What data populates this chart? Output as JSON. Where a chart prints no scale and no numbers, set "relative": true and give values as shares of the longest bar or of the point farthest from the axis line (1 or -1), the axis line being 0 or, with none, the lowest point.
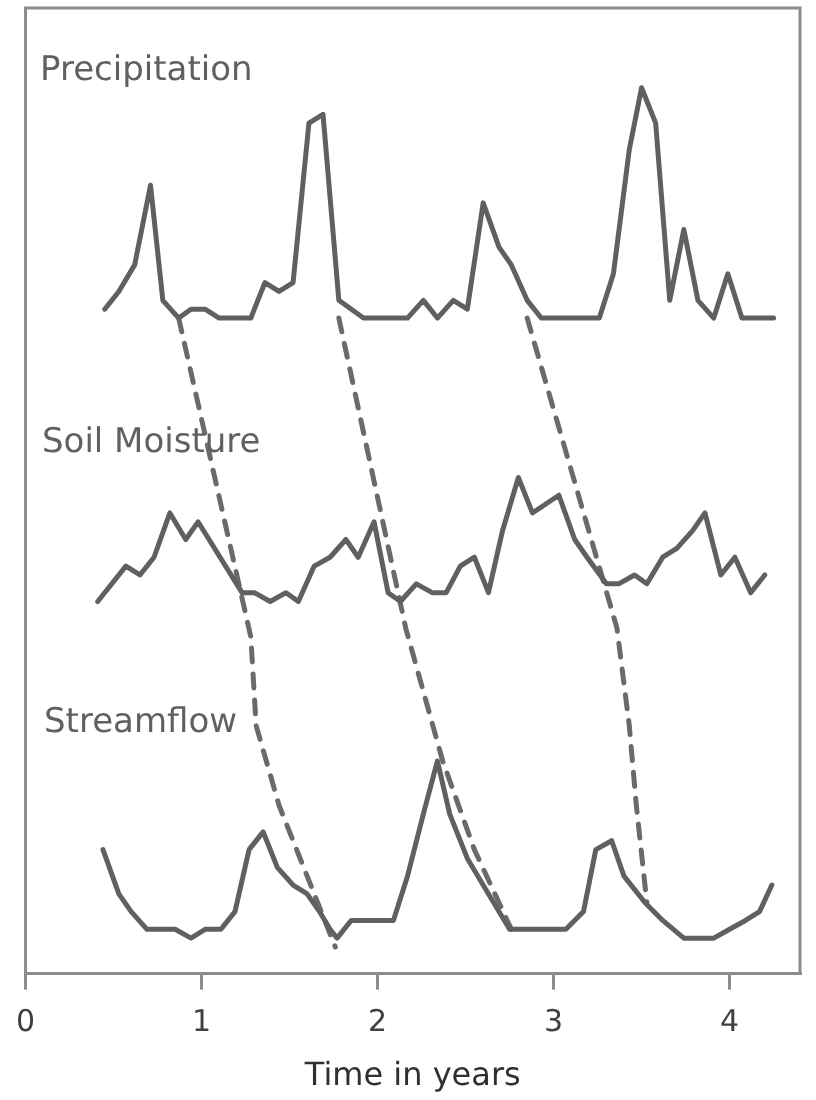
{
  "chart_data": {
    "type": "line",
    "relative": true,
    "xlabel": "Time in years",
    "xlim": [
      0,
      4.4
    ],
    "xticks": [
      0,
      1,
      2,
      3,
      4
    ],
    "marker": "none",
    "line_style": "solid",
    "series": [
      {
        "name": "Precipitation",
        "color": "#606060",
        "x": [
          0.45,
          0.53,
          0.62,
          0.71,
          0.78,
          0.87,
          0.94,
          1.02,
          1.1,
          1.28,
          1.36,
          1.44,
          1.52,
          1.61,
          1.69,
          1.78,
          1.92,
          2.17,
          2.26,
          2.34,
          2.43,
          2.51,
          2.6,
          2.69,
          2.76,
          2.85,
          2.93,
          3.26,
          3.34,
          3.43,
          3.5,
          3.58,
          3.66,
          3.74,
          3.82,
          3.91,
          3.99,
          4.07,
          4.25
        ],
        "values": [
          0.75,
          0.77,
          0.8,
          0.89,
          0.76,
          0.74,
          0.75,
          0.75,
          0.74,
          0.74,
          0.78,
          0.77,
          0.78,
          0.96,
          0.97,
          0.76,
          0.74,
          0.74,
          0.76,
          0.74,
          0.76,
          0.75,
          0.87,
          0.82,
          0.8,
          0.76,
          0.74,
          0.74,
          0.79,
          0.93,
          1.0,
          0.96,
          0.76,
          0.84,
          0.76,
          0.74,
          0.79,
          0.74,
          0.74
        ]
      },
      {
        "name": "Soil Moisture",
        "color": "#606060",
        "x": [
          0.41,
          0.57,
          0.65,
          0.73,
          0.82,
          0.91,
          0.98,
          1.23,
          1.3,
          1.39,
          1.48,
          1.55,
          1.64,
          1.73,
          1.82,
          1.89,
          1.98,
          2.06,
          2.13,
          2.22,
          2.31,
          2.39,
          2.47,
          2.55,
          2.63,
          2.71,
          2.8,
          2.88,
          3.03,
          3.12,
          3.19,
          3.3,
          3.37,
          3.46,
          3.53,
          3.62,
          3.7,
          3.79,
          3.86,
          3.95,
          4.03,
          4.12,
          4.2
        ],
        "values": [
          0.42,
          0.46,
          0.45,
          0.47,
          0.52,
          0.49,
          0.51,
          0.43,
          0.43,
          0.42,
          0.43,
          0.42,
          0.46,
          0.47,
          0.49,
          0.47,
          0.51,
          0.43,
          0.42,
          0.44,
          0.43,
          0.43,
          0.46,
          0.47,
          0.43,
          0.5,
          0.56,
          0.52,
          0.54,
          0.49,
          0.47,
          0.44,
          0.44,
          0.45,
          0.44,
          0.47,
          0.48,
          0.5,
          0.52,
          0.45,
          0.47,
          0.43,
          0.45
        ]
      },
      {
        "name": "Streamflow",
        "color": "#606060",
        "x": [
          0.44,
          0.53,
          0.6,
          0.69,
          0.85,
          0.94,
          1.02,
          1.11,
          1.19,
          1.27,
          1.35,
          1.43,
          1.52,
          1.6,
          1.67,
          1.73,
          1.77,
          1.85,
          1.98,
          2.09,
          2.17,
          2.26,
          2.34,
          2.41,
          2.51,
          2.66,
          2.75,
          2.85,
          3.07,
          3.17,
          3.24,
          3.33,
          3.4,
          3.52,
          3.62,
          3.74,
          3.91,
          4.0,
          4.09,
          4.17,
          4.24
        ],
        "values": [
          0.14,
          0.09,
          0.07,
          0.05,
          0.05,
          0.04,
          0.05,
          0.05,
          0.07,
          0.14,
          0.16,
          0.12,
          0.1,
          0.09,
          0.07,
          0.05,
          0.04,
          0.06,
          0.06,
          0.06,
          0.11,
          0.18,
          0.24,
          0.18,
          0.13,
          0.08,
          0.05,
          0.05,
          0.05,
          0.07,
          0.14,
          0.15,
          0.11,
          0.08,
          0.06,
          0.04,
          0.04,
          0.05,
          0.06,
          0.07,
          0.1
        ]
      },
      {
        "type": "line",
        "line_style": "dashed",
        "color": "#6a6a6a",
        "x": [
          0.87,
          1.28,
          1.31,
          1.44,
          1.58,
          1.76
        ],
        "values": [
          0.74,
          0.38,
          0.28,
          0.19,
          0.12,
          0.03
        ]
      },
      {
        "type": "line",
        "line_style": "dashed",
        "color": "#6a6a6a",
        "x": [
          1.78,
          2.16,
          2.37,
          2.55,
          2.76
        ],
        "values": [
          0.74,
          0.39,
          0.24,
          0.14,
          0.05
        ]
      },
      {
        "type": "line",
        "line_style": "dashed",
        "color": "#6a6a6a",
        "x": [
          2.85,
          3.36,
          3.43,
          3.47,
          3.53
        ],
        "values": [
          0.74,
          0.39,
          0.28,
          0.19,
          0.08
        ]
      }
    ]
  }
}
